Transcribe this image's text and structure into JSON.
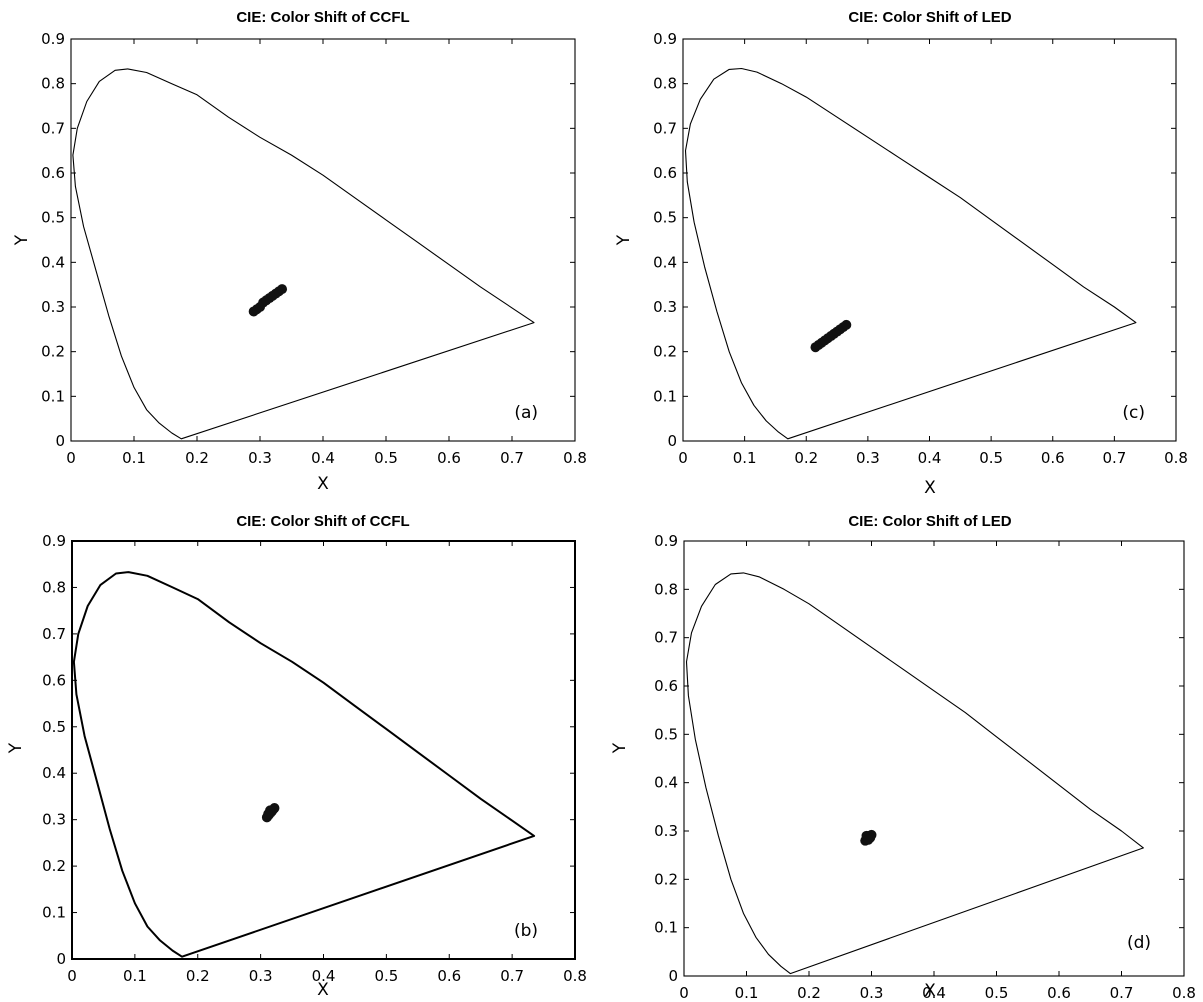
{
  "chart_data": [
    {
      "type": "scatter",
      "title": "CIE: Color Shift of CCFL",
      "xlabel": "X",
      "ylabel": "Y",
      "panel_label": "(a)",
      "xlim": [
        0,
        0.8
      ],
      "ylim": [
        0,
        0.9
      ],
      "xticks": [
        "0",
        "0.1",
        "0.2",
        "0.3",
        "0.4",
        "0.5",
        "0.6",
        "0.7",
        "0.8"
      ],
      "yticks": [
        "0",
        "0.1",
        "0.2",
        "0.3",
        "0.4",
        "0.5",
        "0.6",
        "0.7",
        "0.8",
        "0.9"
      ],
      "grid": false,
      "locus": [
        [
          0.175,
          0.005
        ],
        [
          0.16,
          0.018
        ],
        [
          0.14,
          0.04
        ],
        [
          0.12,
          0.07
        ],
        [
          0.1,
          0.12
        ],
        [
          0.08,
          0.19
        ],
        [
          0.06,
          0.28
        ],
        [
          0.04,
          0.38
        ],
        [
          0.02,
          0.48
        ],
        [
          0.007,
          0.57
        ],
        [
          0.003,
          0.64
        ],
        [
          0.01,
          0.7
        ],
        [
          0.025,
          0.76
        ],
        [
          0.045,
          0.805
        ],
        [
          0.07,
          0.83
        ],
        [
          0.09,
          0.833
        ],
        [
          0.12,
          0.825
        ],
        [
          0.16,
          0.8
        ],
        [
          0.2,
          0.775
        ],
        [
          0.25,
          0.725
        ],
        [
          0.3,
          0.68
        ],
        [
          0.35,
          0.64
        ],
        [
          0.4,
          0.595
        ],
        [
          0.45,
          0.545
        ],
        [
          0.5,
          0.495
        ],
        [
          0.55,
          0.445
        ],
        [
          0.6,
          0.395
        ],
        [
          0.65,
          0.345
        ],
        [
          0.7,
          0.298
        ],
        [
          0.735,
          0.265
        ]
      ],
      "points": [
        [
          0.29,
          0.29
        ],
        [
          0.295,
          0.295
        ],
        [
          0.3,
          0.3
        ],
        [
          0.305,
          0.31
        ],
        [
          0.31,
          0.315
        ],
        [
          0.315,
          0.32
        ],
        [
          0.32,
          0.325
        ],
        [
          0.325,
          0.33
        ],
        [
          0.33,
          0.335
        ],
        [
          0.335,
          0.34
        ]
      ]
    },
    {
      "type": "scatter",
      "title": "CIE: Color Shift of LED",
      "xlabel": "X",
      "ylabel": "Y",
      "panel_label": "(c)",
      "xlim": [
        0,
        0.8
      ],
      "ylim": [
        0,
        0.9
      ],
      "xticks": [
        "0",
        "0.1",
        "0.2",
        "0.3",
        "0.4",
        "0.5",
        "0.6",
        "0.7",
        "0.8"
      ],
      "yticks": [
        "0",
        "0.1",
        "0.2",
        "0.3",
        "0.4",
        "0.5",
        "0.6",
        "0.7",
        "0.8",
        "0.9"
      ],
      "grid": false,
      "locus": [
        [
          0.17,
          0.005
        ],
        [
          0.155,
          0.02
        ],
        [
          0.135,
          0.045
        ],
        [
          0.115,
          0.08
        ],
        [
          0.095,
          0.13
        ],
        [
          0.075,
          0.2
        ],
        [
          0.055,
          0.29
        ],
        [
          0.035,
          0.39
        ],
        [
          0.018,
          0.49
        ],
        [
          0.007,
          0.58
        ],
        [
          0.004,
          0.65
        ],
        [
          0.012,
          0.71
        ],
        [
          0.028,
          0.765
        ],
        [
          0.05,
          0.81
        ],
        [
          0.075,
          0.832
        ],
        [
          0.095,
          0.834
        ],
        [
          0.12,
          0.826
        ],
        [
          0.16,
          0.8
        ],
        [
          0.2,
          0.77
        ],
        [
          0.25,
          0.725
        ],
        [
          0.3,
          0.68
        ],
        [
          0.35,
          0.635
        ],
        [
          0.4,
          0.59
        ],
        [
          0.45,
          0.545
        ],
        [
          0.5,
          0.495
        ],
        [
          0.55,
          0.445
        ],
        [
          0.6,
          0.395
        ],
        [
          0.65,
          0.345
        ],
        [
          0.7,
          0.3
        ],
        [
          0.735,
          0.265
        ]
      ],
      "points": [
        [
          0.215,
          0.21
        ],
        [
          0.22,
          0.215
        ],
        [
          0.225,
          0.22
        ],
        [
          0.23,
          0.225
        ],
        [
          0.235,
          0.23
        ],
        [
          0.24,
          0.235
        ],
        [
          0.245,
          0.24
        ],
        [
          0.25,
          0.245
        ],
        [
          0.255,
          0.25
        ],
        [
          0.26,
          0.255
        ],
        [
          0.265,
          0.26
        ]
      ]
    },
    {
      "type": "scatter",
      "title": "CIE: Color Shift of CCFL",
      "xlabel": "X",
      "ylabel": "Y",
      "panel_label": "(b)",
      "xlim": [
        0,
        0.8
      ],
      "ylim": [
        0,
        0.9
      ],
      "xticks": [
        "0",
        "0.1",
        "0.2",
        "0.3",
        "0.4",
        "0.5",
        "0.6",
        "0.7",
        "0.8"
      ],
      "yticks": [
        "0",
        "0.1",
        "0.2",
        "0.3",
        "0.4",
        "0.5",
        "0.6",
        "0.7",
        "0.8",
        "0.9"
      ],
      "grid": false,
      "locus": [
        [
          0.175,
          0.005
        ],
        [
          0.16,
          0.018
        ],
        [
          0.14,
          0.04
        ],
        [
          0.12,
          0.07
        ],
        [
          0.1,
          0.12
        ],
        [
          0.08,
          0.19
        ],
        [
          0.06,
          0.28
        ],
        [
          0.04,
          0.38
        ],
        [
          0.02,
          0.48
        ],
        [
          0.007,
          0.57
        ],
        [
          0.003,
          0.64
        ],
        [
          0.01,
          0.7
        ],
        [
          0.025,
          0.76
        ],
        [
          0.045,
          0.805
        ],
        [
          0.07,
          0.83
        ],
        [
          0.09,
          0.833
        ],
        [
          0.12,
          0.825
        ],
        [
          0.16,
          0.8
        ],
        [
          0.2,
          0.775
        ],
        [
          0.25,
          0.725
        ],
        [
          0.3,
          0.68
        ],
        [
          0.35,
          0.64
        ],
        [
          0.4,
          0.595
        ],
        [
          0.45,
          0.545
        ],
        [
          0.5,
          0.495
        ],
        [
          0.55,
          0.445
        ],
        [
          0.6,
          0.395
        ],
        [
          0.65,
          0.345
        ],
        [
          0.7,
          0.298
        ],
        [
          0.735,
          0.265
        ]
      ],
      "points": [
        [
          0.31,
          0.305
        ],
        [
          0.313,
          0.31
        ],
        [
          0.316,
          0.315
        ],
        [
          0.318,
          0.318
        ],
        [
          0.32,
          0.322
        ],
        [
          0.322,
          0.325
        ],
        [
          0.315,
          0.32
        ],
        [
          0.312,
          0.312
        ]
      ]
    },
    {
      "type": "scatter",
      "title": "CIE: Color Shift of LED",
      "xlabel": "X",
      "ylabel": "Y",
      "panel_label": "(d)",
      "xlim": [
        0,
        0.8
      ],
      "ylim": [
        0,
        0.9
      ],
      "xticks": [
        "0",
        "0.1",
        "0.2",
        "0.3",
        "0.4",
        "0.5",
        "0.6",
        "0.7",
        "0.8"
      ],
      "yticks": [
        "0",
        "0.1",
        "0.2",
        "0.3",
        "0.4",
        "0.5",
        "0.6",
        "0.7",
        "0.8",
        "0.9"
      ],
      "grid": false,
      "locus": [
        [
          0.17,
          0.005
        ],
        [
          0.155,
          0.02
        ],
        [
          0.135,
          0.045
        ],
        [
          0.115,
          0.08
        ],
        [
          0.095,
          0.13
        ],
        [
          0.075,
          0.2
        ],
        [
          0.055,
          0.29
        ],
        [
          0.035,
          0.39
        ],
        [
          0.018,
          0.49
        ],
        [
          0.007,
          0.58
        ],
        [
          0.004,
          0.65
        ],
        [
          0.012,
          0.71
        ],
        [
          0.028,
          0.765
        ],
        [
          0.05,
          0.81
        ],
        [
          0.075,
          0.832
        ],
        [
          0.095,
          0.834
        ],
        [
          0.12,
          0.826
        ],
        [
          0.16,
          0.8
        ],
        [
          0.2,
          0.77
        ],
        [
          0.25,
          0.725
        ],
        [
          0.3,
          0.68
        ],
        [
          0.35,
          0.635
        ],
        [
          0.4,
          0.59
        ],
        [
          0.45,
          0.545
        ],
        [
          0.5,
          0.495
        ],
        [
          0.55,
          0.445
        ],
        [
          0.6,
          0.395
        ],
        [
          0.65,
          0.345
        ],
        [
          0.7,
          0.3
        ],
        [
          0.735,
          0.265
        ]
      ],
      "points": [
        [
          0.29,
          0.28
        ],
        [
          0.293,
          0.285
        ],
        [
          0.296,
          0.29
        ],
        [
          0.3,
          0.292
        ],
        [
          0.298,
          0.286
        ],
        [
          0.292,
          0.29
        ],
        [
          0.295,
          0.282
        ]
      ]
    }
  ]
}
